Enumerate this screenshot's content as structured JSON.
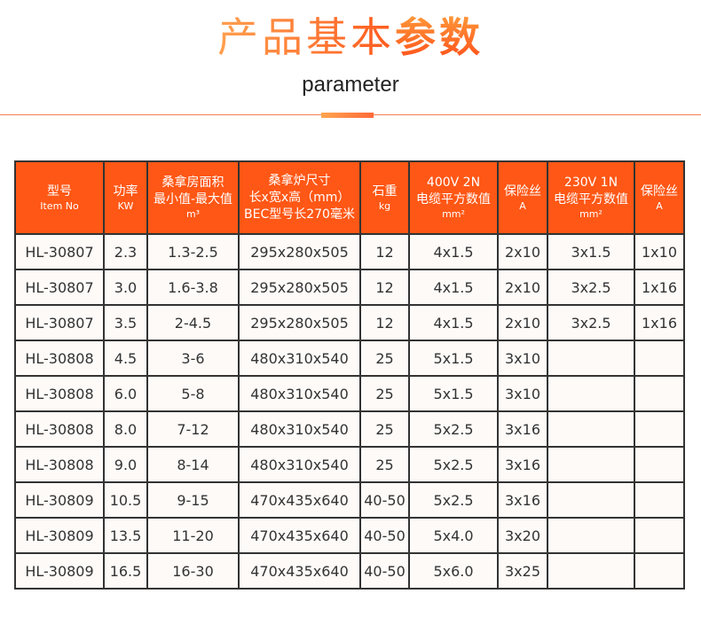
{
  "title": {
    "light": "产品基本",
    "bold": "参数"
  },
  "subtitle": "parameter",
  "colors": {
    "accent": "#ff5715",
    "border": "#333333"
  },
  "table": {
    "headers": [
      {
        "lines": [
          "型号"
        ],
        "sub": "Item No"
      },
      {
        "lines": [
          "功率"
        ],
        "sub": "KW"
      },
      {
        "lines": [
          "桑拿房面积",
          "最小值-最大值"
        ],
        "sub": "m³"
      },
      {
        "lines": [
          "桑拿炉尺寸",
          "长x宽x高（mm）",
          "BEC型号长270毫米"
        ],
        "sub": ""
      },
      {
        "lines": [
          "石重"
        ],
        "sub": "kg"
      },
      {
        "lines": [
          "400V  2N",
          "电缆平方数值"
        ],
        "sub": "mm²"
      },
      {
        "lines": [
          "保险丝"
        ],
        "sub": "A"
      },
      {
        "lines": [
          "230V 1N",
          "电缆平方数值"
        ],
        "sub": "mm²"
      },
      {
        "lines": [
          "保险丝"
        ],
        "sub": "A"
      }
    ],
    "rows": [
      [
        "HL-30807",
        "2.3",
        "1.3-2.5",
        "295x280x505",
        "12",
        "4x1.5",
        "2x10",
        "3x1.5",
        "1x10"
      ],
      [
        "HL-30807",
        "3.0",
        "1.6-3.8",
        "295x280x505",
        "12",
        "4x1.5",
        "2x10",
        "3x2.5",
        "1x16"
      ],
      [
        "HL-30807",
        "3.5",
        "2-4.5",
        "295x280x505",
        "12",
        "4x1.5",
        "2x10",
        "3x2.5",
        "1x16"
      ],
      [
        "HL-30808",
        "4.5",
        "3-6",
        "480x310x540",
        "25",
        "5x1.5",
        "3x10",
        "",
        ""
      ],
      [
        "HL-30808",
        "6.0",
        "5-8",
        "480x310x540",
        "25",
        "5x1.5",
        "3x10",
        "",
        ""
      ],
      [
        "HL-30808",
        "8.0",
        "7-12",
        "480x310x540",
        "25",
        "5x2.5",
        "3x16",
        "",
        ""
      ],
      [
        "HL-30808",
        "9.0",
        "8-14",
        "480x310x540",
        "25",
        "5x2.5",
        "3x16",
        "",
        ""
      ],
      [
        "HL-30809",
        "10.5",
        "9-15",
        "470x435x640",
        "40-50",
        "5x2.5",
        "3x16",
        "",
        ""
      ],
      [
        "HL-30809",
        "13.5",
        "11-20",
        "470x435x640",
        "40-50",
        "5x4.0",
        "3x20",
        "",
        ""
      ],
      [
        "HL-30809",
        "16.5",
        "16-30",
        "470x435x640",
        "40-50",
        "5x6.0",
        "3x25",
        "",
        ""
      ]
    ]
  }
}
